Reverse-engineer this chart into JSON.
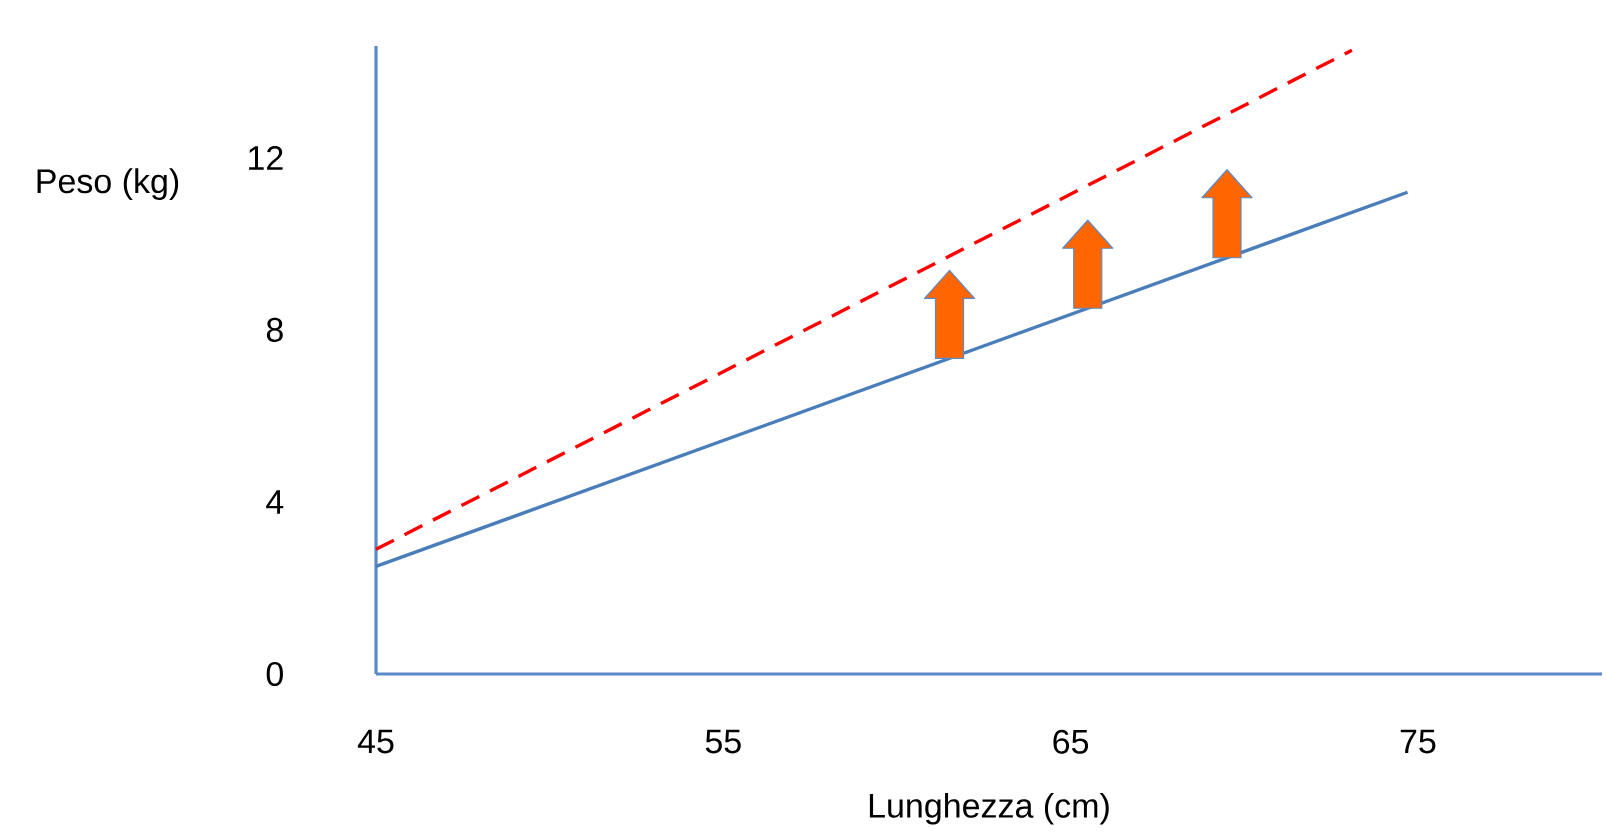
{
  "chart_data": {
    "type": "line",
    "xlabel": "Lunghezza (cm)",
    "ylabel": "Peso (kg)",
    "xlim": [
      45,
      80.3
    ],
    "ylim": [
      0,
      14.6
    ],
    "xticks": [
      45,
      55,
      65,
      75
    ],
    "yticks": [
      0,
      4,
      8,
      12
    ],
    "series": [
      {
        "color": "#4a7ebb",
        "x": [
          45,
          74.7
        ],
        "values": [
          2.5,
          11.2
        ],
        "line_style": "solid"
      },
      {
        "color": "#ff0000",
        "x": [
          45,
          73.1
        ],
        "values": [
          2.9,
          14.5
        ],
        "line_style": "dashed"
      }
    ]
  }
}
